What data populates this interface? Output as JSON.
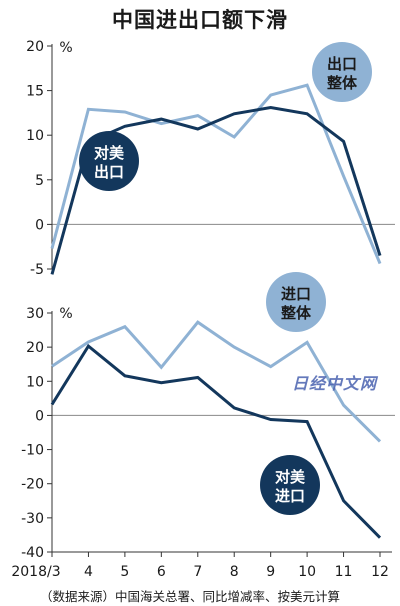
{
  "title": "中国进出口额下滑",
  "footnote": "（数据来源）中国海关总署、同比增减率、按美元计算",
  "watermark": "日经中文网",
  "colors": {
    "total": "#8fb2d4",
    "us": "#13375c",
    "grid": "#888888"
  },
  "chart_data": [
    {
      "type": "line",
      "unit": "%",
      "ylim": [
        -5,
        20
      ],
      "yticks": [
        20,
        15,
        10,
        5,
        0,
        -5
      ],
      "x": [
        "2018/3",
        "4",
        "5",
        "6",
        "7",
        "8",
        "9",
        "10",
        "11",
        "12"
      ],
      "series": [
        {
          "name": "出口整体",
          "values": [
            -2.7,
            12.9,
            12.6,
            11.3,
            12.2,
            9.8,
            14.5,
            15.6,
            5.4,
            -4.4
          ]
        },
        {
          "name": "对美出口",
          "values": [
            -5.6,
            9.2,
            11.0,
            11.8,
            10.7,
            12.4,
            13.1,
            12.4,
            9.3,
            -3.5
          ]
        }
      ]
    },
    {
      "type": "line",
      "unit": "%",
      "ylim": [
        -40,
        30
      ],
      "yticks": [
        30,
        20,
        10,
        0,
        -10,
        -20,
        -30,
        -40
      ],
      "x": [
        "2018/3",
        "4",
        "5",
        "6",
        "7",
        "8",
        "9",
        "10",
        "11",
        "12"
      ],
      "series": [
        {
          "name": "进口整体",
          "values": [
            14.4,
            21.5,
            26.0,
            14.1,
            27.3,
            20.0,
            14.3,
            21.4,
            3.0,
            -7.6
          ]
        },
        {
          "name": "对美进口",
          "values": [
            3.2,
            20.3,
            11.6,
            9.6,
            11.1,
            2.2,
            -1.2,
            -1.8,
            -25.0,
            -35.8
          ]
        }
      ]
    }
  ]
}
